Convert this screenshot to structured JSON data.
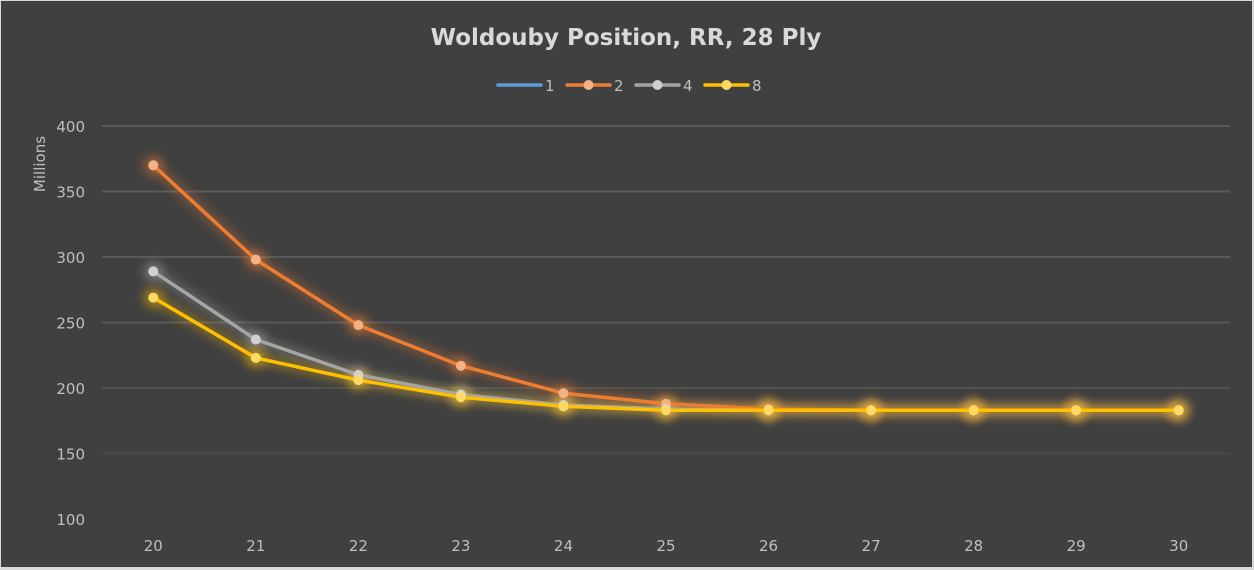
{
  "chart_data": {
    "type": "line",
    "title": "Woldouby Position, RR, 28 Ply",
    "xlabel": "",
    "ylabel": "Millions",
    "categories": [
      "20",
      "21",
      "22",
      "23",
      "24",
      "25",
      "26",
      "27",
      "28",
      "29",
      "30"
    ],
    "ylim": [
      100,
      400
    ],
    "yticks": [
      100,
      150,
      200,
      250,
      300,
      350,
      400
    ],
    "grid": true,
    "legend_position": "top",
    "series": [
      {
        "name": "1",
        "color": "#5b9bd5",
        "marker_color": "#9dc3e6",
        "markers": false,
        "values": [
          null,
          null,
          null,
          null,
          null,
          null,
          null,
          null,
          null,
          null,
          null
        ]
      },
      {
        "name": "2",
        "color": "#ed7d31",
        "marker_color": "#f4b183",
        "markers": true,
        "values": [
          370,
          298,
          248,
          217,
          196,
          188,
          184,
          183,
          183,
          183,
          183
        ]
      },
      {
        "name": "4",
        "color": "#a5a5a5",
        "marker_color": "#d0d0d0",
        "markers": true,
        "values": [
          289,
          237,
          210,
          195,
          187,
          184,
          183,
          183,
          183,
          183,
          183
        ]
      },
      {
        "name": "8",
        "color": "#ffc000",
        "marker_color": "#ffd966",
        "markers": true,
        "values": [
          269,
          223,
          206,
          193,
          186,
          183,
          183,
          183,
          183,
          183,
          183
        ]
      }
    ]
  },
  "colors": {
    "background": "#404040",
    "gridline": "#595959",
    "text": "#bfbfbf",
    "title": "#d9d9d9"
  }
}
